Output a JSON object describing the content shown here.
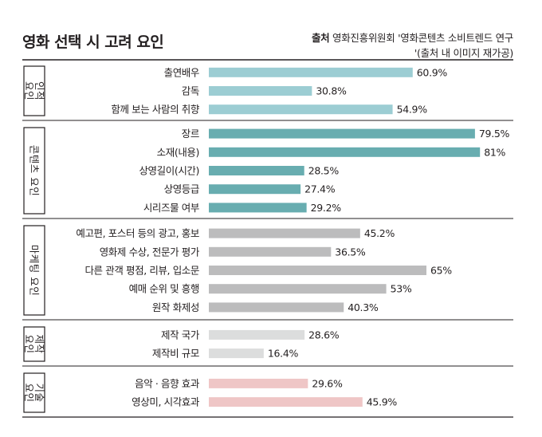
{
  "header": {
    "title": "영화 선택 시 고려 요인",
    "source_label": "출처",
    "source_line1": "영화진흥위원회 '영화콘텐츠 소비트렌드 연구",
    "source_line2": "'(출처 내 이미지 재가공)"
  },
  "chart_data": {
    "type": "bar",
    "orientation": "horizontal",
    "unit": "%",
    "groups": [
      {
        "name": "인적 요인",
        "label_lines": [
          "인적",
          "요인"
        ],
        "color": "#9ccdd3",
        "items": [
          {
            "label": "출연배우",
            "value": 60.9,
            "value_label": "60.9%"
          },
          {
            "label": "감독",
            "value": 30.8,
            "value_label": "30.8%"
          },
          {
            "label": "함께 보는 사람의 취향",
            "value": 54.9,
            "value_label": "54.9%"
          }
        ]
      },
      {
        "name": "콘텐츠 요인",
        "label_lines": [
          "콘텐츠 요인"
        ],
        "color": "#68adb0",
        "items": [
          {
            "label": "장르",
            "value": 79.5,
            "value_label": "79.5%"
          },
          {
            "label": "소재(내용)",
            "value": 81,
            "value_label": "81%"
          },
          {
            "label": "상영길이(시간)",
            "value": 28.5,
            "value_label": "28.5%"
          },
          {
            "label": "상영등급",
            "value": 27.4,
            "value_label": "27.4%"
          },
          {
            "label": "시리즈물 여부",
            "value": 29.2,
            "value_label": "29.2%"
          }
        ]
      },
      {
        "name": "마케팅 요인",
        "label_lines": [
          "마케팅 요인"
        ],
        "color": "#bcbcbd",
        "items": [
          {
            "label": "예고편, 포스터 등의 광고, 홍보",
            "value": 45.2,
            "value_label": "45.2%"
          },
          {
            "label": "영화제 수상, 전문가 평가",
            "value": 36.5,
            "value_label": "36.5%"
          },
          {
            "label": "다른 관객 평점, 리뷰, 입소문",
            "value": 65,
            "value_label": "65%"
          },
          {
            "label": "예매 순위 및 흥행",
            "value": 53,
            "value_label": "53%"
          },
          {
            "label": "원작 화제성",
            "value": 40.3,
            "value_label": "40.3%"
          }
        ]
      },
      {
        "name": "제작 요인",
        "label_lines": [
          "제작",
          "요인"
        ],
        "color": "#dcdddd",
        "items": [
          {
            "label": "제작 국가",
            "value": 28.6,
            "value_label": "28.6%"
          },
          {
            "label": "제작비 규모",
            "value": 16.4,
            "value_label": "16.4%"
          }
        ]
      },
      {
        "name": "기술 요인",
        "label_lines": [
          "기술",
          "요인"
        ],
        "color": "#efc6c6",
        "items": [
          {
            "label": "음악 · 음향 효과",
            "value": 29.6,
            "value_label": "29.6%"
          },
          {
            "label": "영상미, 시각효과",
            "value": 45.9,
            "value_label": "45.9%"
          }
        ]
      }
    ]
  }
}
